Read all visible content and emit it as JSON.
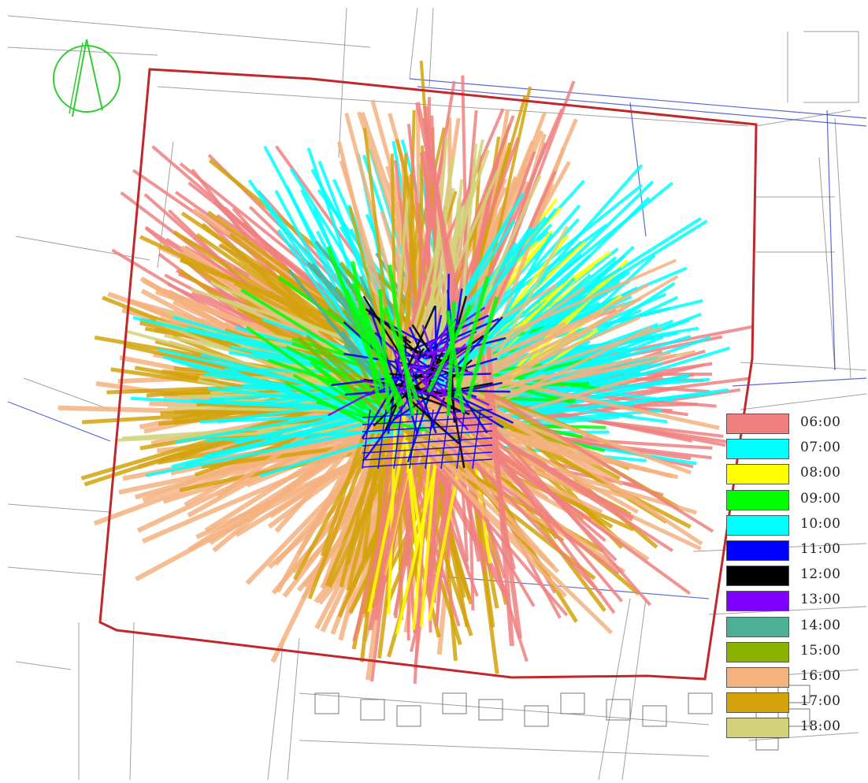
{
  "legend": {
    "items": [
      {
        "label": "06:00",
        "color": "#f08080"
      },
      {
        "label": "07:00",
        "color": "#00ffff"
      },
      {
        "label": "08:00",
        "color": "#ffff00"
      },
      {
        "label": "09:00",
        "color": "#00ff00"
      },
      {
        "label": "10:00",
        "color": "#00ffff"
      },
      {
        "label": "11:00",
        "color": "#0000ff"
      },
      {
        "label": "12:00",
        "color": "#000000"
      },
      {
        "label": "13:00",
        "color": "#7f00ff"
      },
      {
        "label": "14:00",
        "color": "#4caf96"
      },
      {
        "label": "15:00",
        "color": "#8bb100"
      },
      {
        "label": "16:00",
        "color": "#f4b27f"
      },
      {
        "label": "17:00",
        "color": "#d4a20a"
      },
      {
        "label": "18:00",
        "color": "#d2d27a"
      }
    ]
  },
  "map": {
    "site_boundary_color": "#c0282c",
    "base_line_color": "#777777",
    "road_line_color": "#3344cc",
    "north_arrow_color": "#33cc33"
  }
}
